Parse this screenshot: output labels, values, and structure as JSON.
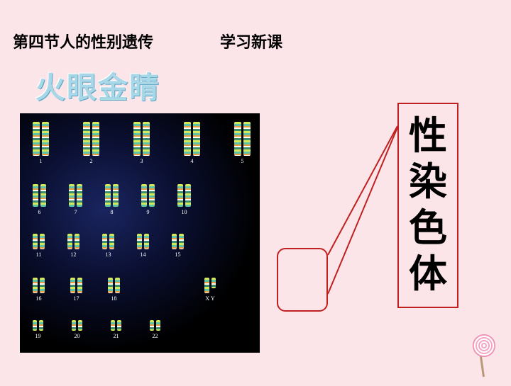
{
  "header": {
    "left": "第四节人的性别遗传",
    "right": "学习新课"
  },
  "subtitle": {
    "text": "火眼金睛",
    "color": "#a8d8e8",
    "fontsize": 42
  },
  "karyotype": {
    "background_colors": [
      "#1a2560",
      "#0a0f30",
      "#000000"
    ],
    "band_colors": [
      "#d4e85c",
      "#5cc4a8",
      "#e89c3c",
      "#ffffff",
      "#3a8c6c"
    ],
    "rows": [
      {
        "labels": [
          "1",
          "2",
          "3",
          "4",
          "5"
        ],
        "size": "tall"
      },
      {
        "labels": [
          "6",
          "7",
          "8",
          "9",
          "10"
        ],
        "size": "med"
      },
      {
        "labels": [
          "11",
          "12",
          "13",
          "14",
          "15"
        ],
        "size": "small"
      },
      {
        "labels": [
          "16",
          "17",
          "18"
        ],
        "size": "small"
      },
      {
        "labels": [
          "19",
          "20",
          "21",
          "22"
        ],
        "size": "tiny"
      }
    ],
    "sex_pair": {
      "labels": [
        "X",
        "Y"
      ],
      "size": "small"
    }
  },
  "callout": {
    "border_color": "#c02020",
    "label_chars": [
      "性",
      "染",
      "色",
      "体"
    ],
    "label_fontsize": 54,
    "line_color": "#c02020"
  },
  "colors": {
    "page_background": "#fce5e9",
    "text": "#000000"
  }
}
